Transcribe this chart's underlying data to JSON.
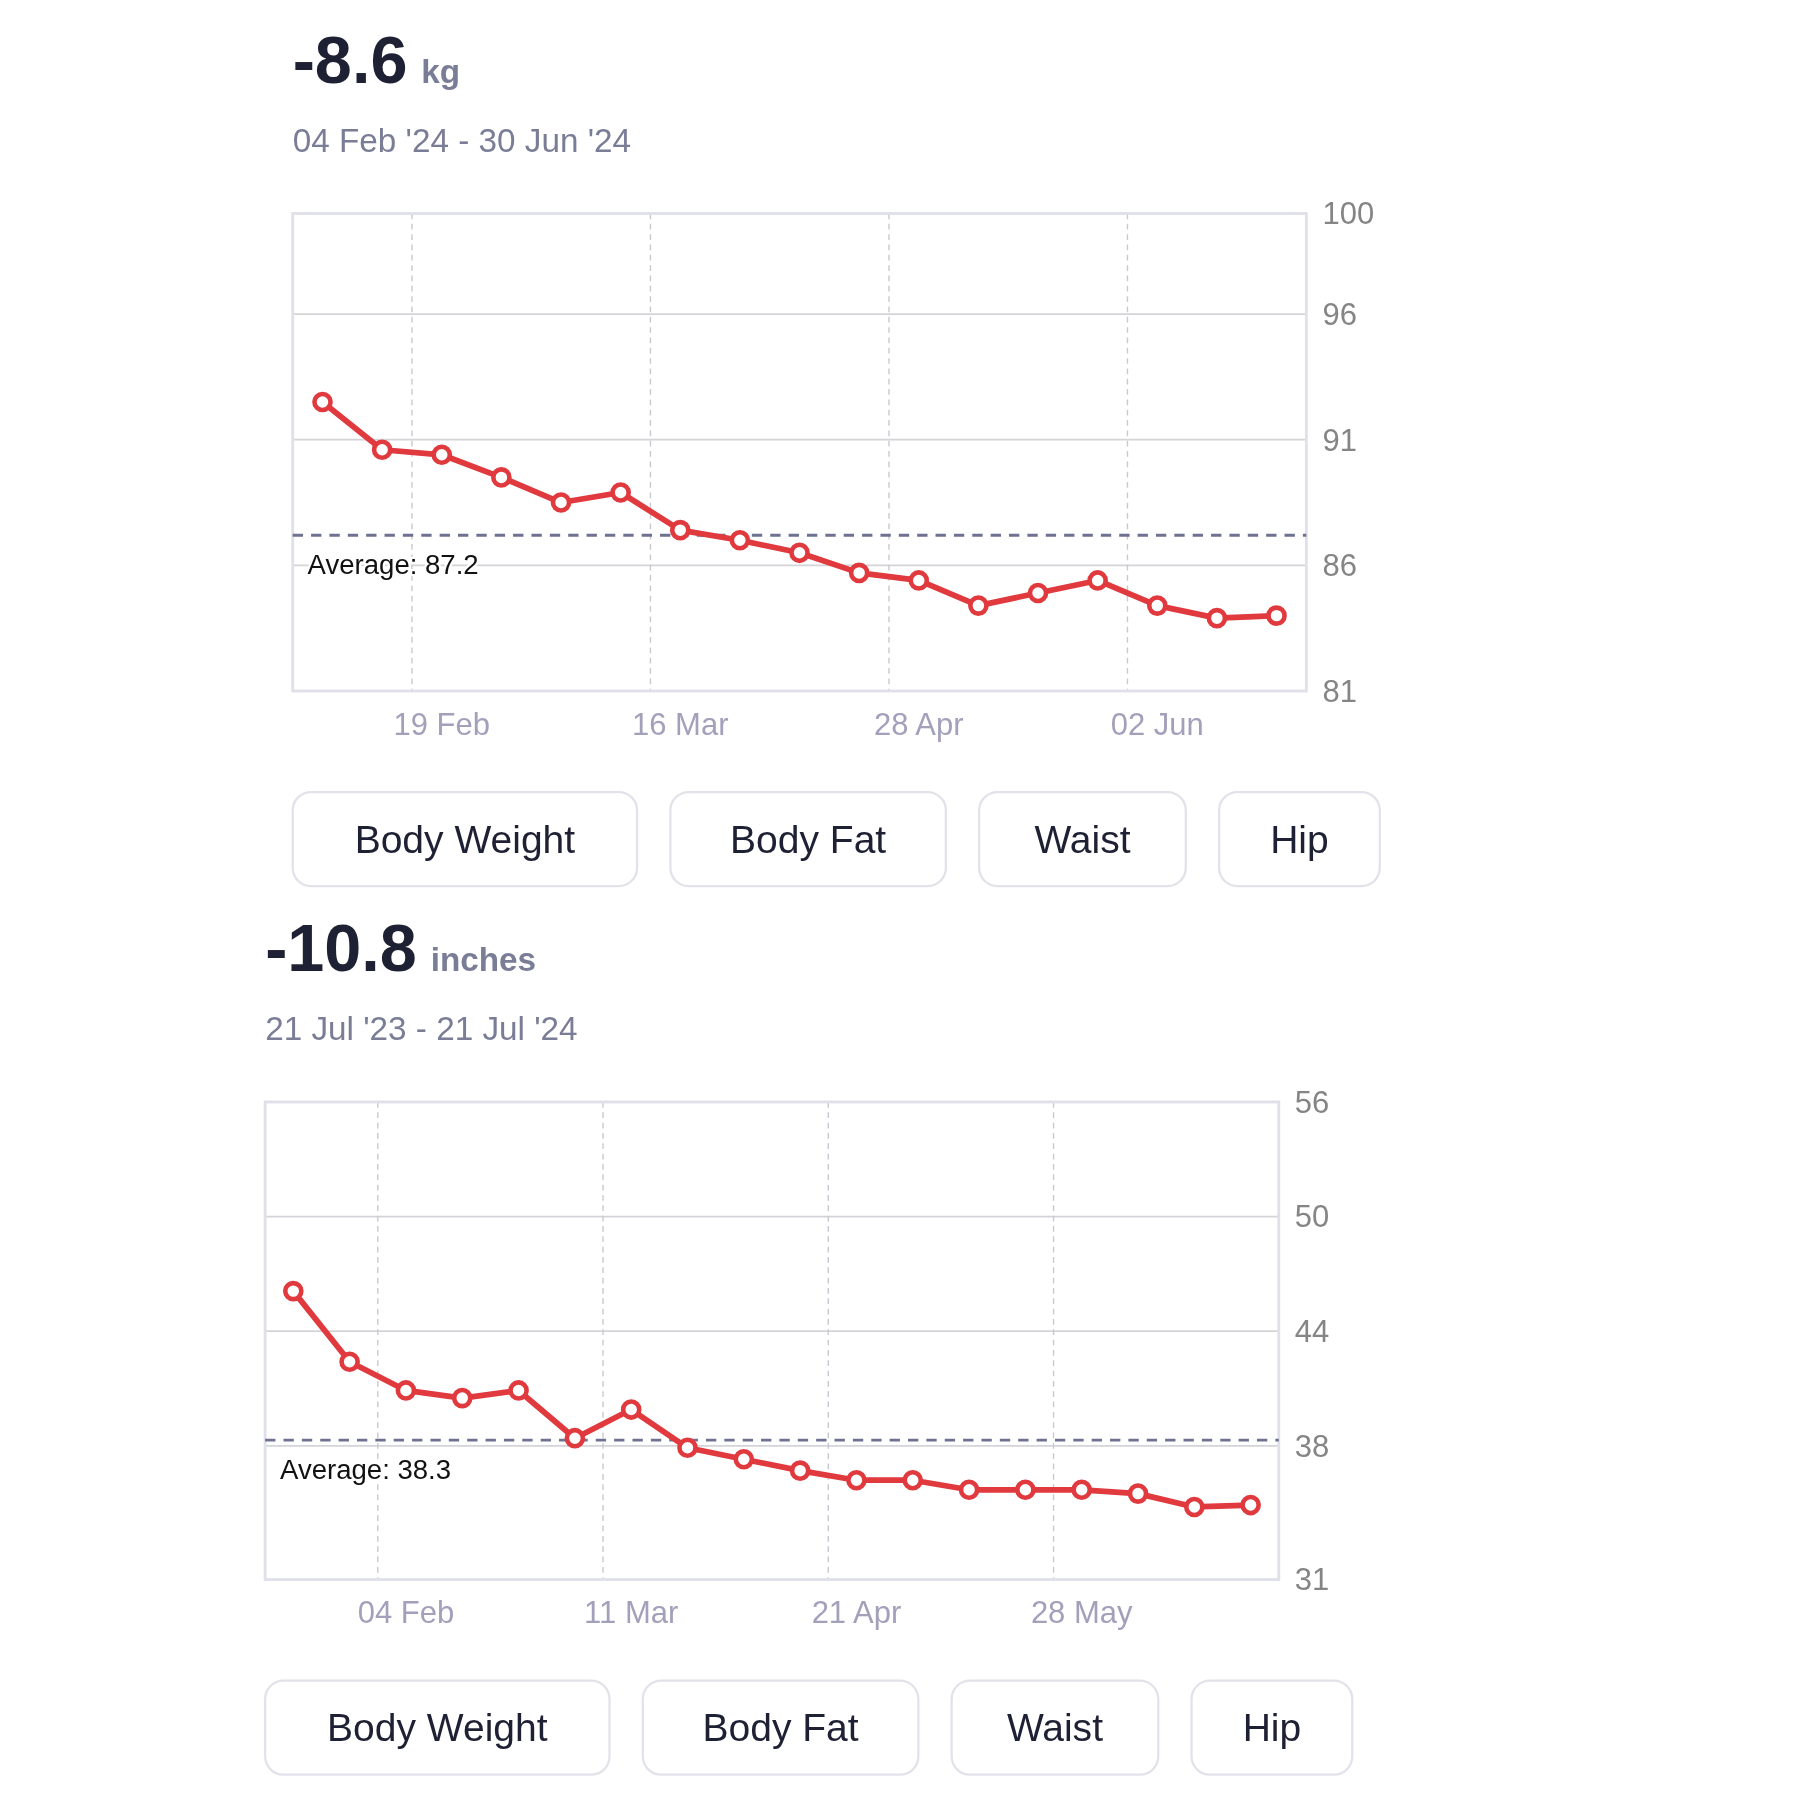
{
  "chart_data": [
    {
      "type": "line",
      "title": "-8.6 kg",
      "subtitle": "04 Feb '24 - 30 Jun '24",
      "categories": [
        null,
        null,
        "19 Feb",
        null,
        null,
        null,
        "16 Mar",
        null,
        null,
        null,
        "28 Apr",
        null,
        null,
        null,
        "02 Jun",
        null,
        null
      ],
      "series": [
        {
          "color": "#e0393e",
          "values": [
            92.5,
            90.6,
            90.4,
            89.5,
            88.5,
            88.9,
            87.4,
            87.0,
            86.5,
            85.7,
            85.4,
            84.4,
            84.9,
            85.4,
            84.4,
            83.9,
            84.0
          ]
        }
      ],
      "ylim": [
        81,
        100
      ],
      "yticks": [
        81,
        86,
        91,
        96,
        100
      ],
      "ref_lines": [
        {
          "axis": "y",
          "value": 87.2,
          "label": "Average: 87.2",
          "color": "#6e7290",
          "line_style": "dashed"
        }
      ],
      "annotations": [
        "Body Weight",
        "Body Fat",
        "Waist",
        "Hip"
      ],
      "grid": true,
      "marker": "circle"
    },
    {
      "type": "line",
      "title": "-10.8 inches",
      "subtitle": "21 Jul '23 - 21 Jul '24",
      "categories": [
        null,
        null,
        "04 Feb",
        null,
        null,
        null,
        "11 Mar",
        null,
        null,
        null,
        "21 Apr",
        null,
        null,
        null,
        "28 May",
        null,
        null,
        null
      ],
      "series": [
        {
          "color": "#e0393e",
          "values": [
            46.1,
            42.4,
            40.9,
            40.5,
            40.9,
            38.4,
            39.9,
            37.9,
            37.3,
            36.7,
            36.2,
            36.2,
            35.7,
            35.7,
            35.7,
            35.5,
            34.8,
            34.9
          ]
        }
      ],
      "ylim": [
        31,
        56
      ],
      "yticks": [
        31,
        38,
        44,
        50,
        56
      ],
      "ref_lines": [
        {
          "axis": "y",
          "value": 38.3,
          "label": "Average: 38.3",
          "color": "#6e7290",
          "line_style": "dashed"
        }
      ],
      "annotations": [
        "Body Weight",
        "Body Fat",
        "Waist",
        "Hip"
      ],
      "grid": true,
      "marker": "circle"
    }
  ]
}
